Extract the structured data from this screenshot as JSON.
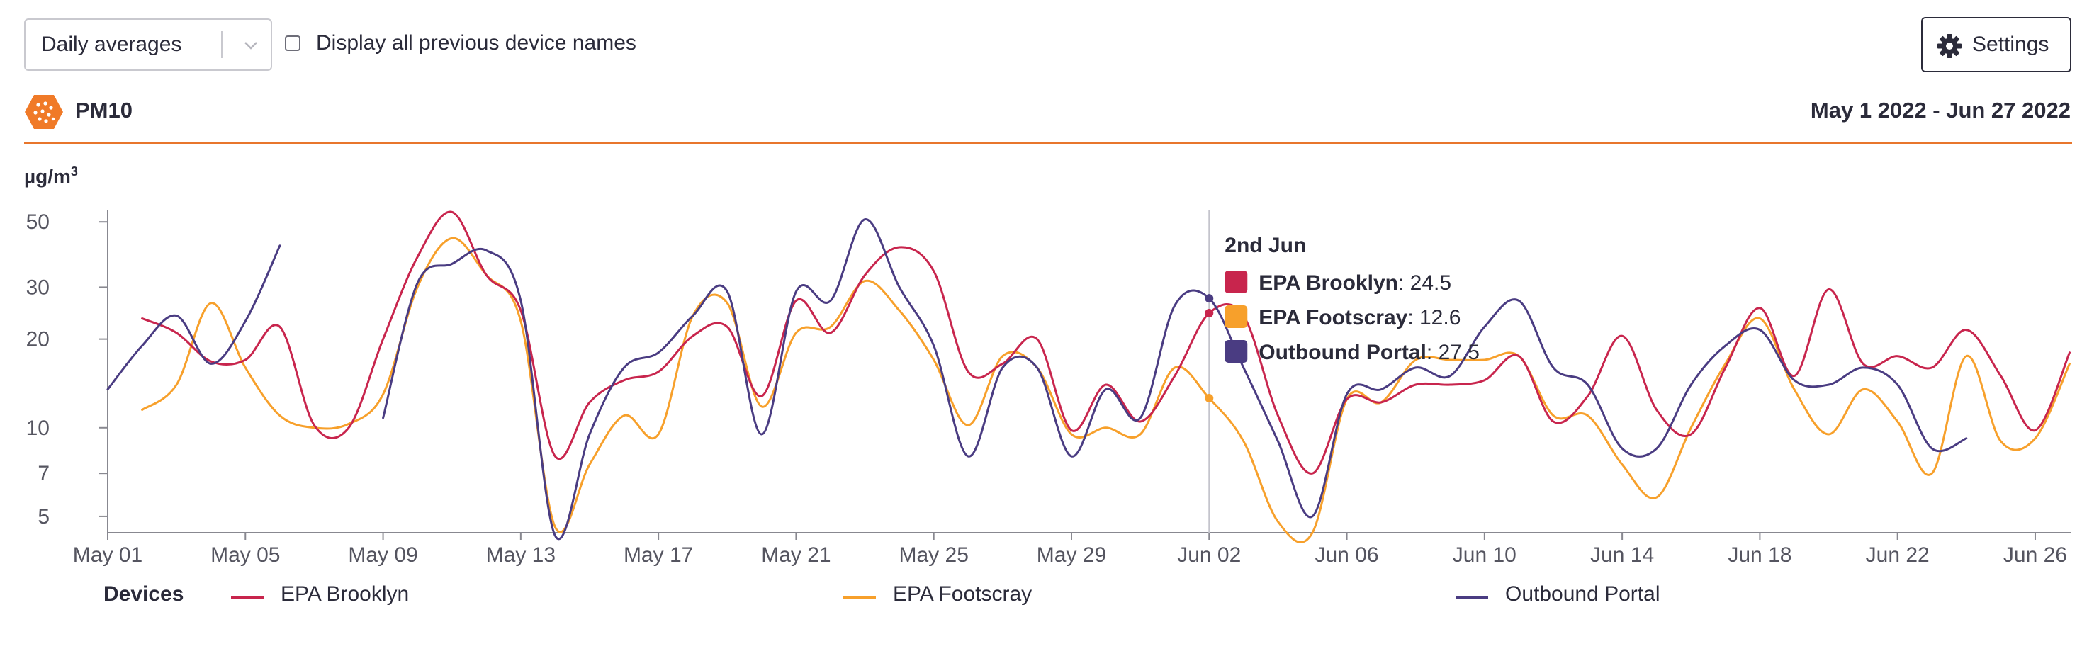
{
  "controls": {
    "aggregation_select": "Daily averages",
    "checkbox_label": "Display all previous device names",
    "settings_label": "Settings"
  },
  "header": {
    "pollutant": "PM10",
    "date_range": "May 1 2022 - Jun 27 2022"
  },
  "colors": {
    "accent": "#e8762c",
    "epa_brooklyn": "#c8254d",
    "epa_footscray": "#f7a02b",
    "outbound_portal": "#4a3c82",
    "axis": "#555560"
  },
  "tooltip": {
    "title": "2nd Jun",
    "rows": [
      {
        "name": "EPA Brooklyn",
        "value": ": 24.5"
      },
      {
        "name": "EPA Footscray",
        "value": ": 12.6"
      },
      {
        "name": "Outbound Portal",
        "value": ": 27.5"
      }
    ]
  },
  "legend": {
    "title": "Devices",
    "items": [
      "EPA Brooklyn",
      "EPA Footscray",
      "Outbound Portal"
    ]
  },
  "chart_data": {
    "type": "line",
    "ylabel": "µg/m",
    "ylabel_sup": "3",
    "y_scale": "log",
    "ylim": [
      4.4,
      55
    ],
    "y_ticks": [
      5,
      7,
      10,
      20,
      30,
      50
    ],
    "xlim": [
      "2022-05-01",
      "2022-06-27"
    ],
    "x_ticks": [
      {
        "date": "2022-05-01",
        "label": "May 01"
      },
      {
        "date": "2022-05-05",
        "label": "May 05"
      },
      {
        "date": "2022-05-09",
        "label": "May 09"
      },
      {
        "date": "2022-05-13",
        "label": "May 13"
      },
      {
        "date": "2022-05-17",
        "label": "May 17"
      },
      {
        "date": "2022-05-21",
        "label": "May 21"
      },
      {
        "date": "2022-05-25",
        "label": "May 25"
      },
      {
        "date": "2022-05-29",
        "label": "May 29"
      },
      {
        "date": "2022-06-02",
        "label": "Jun 02"
      },
      {
        "date": "2022-06-06",
        "label": "Jun 06"
      },
      {
        "date": "2022-06-10",
        "label": "Jun 10"
      },
      {
        "date": "2022-06-14",
        "label": "Jun 14"
      },
      {
        "date": "2022-06-18",
        "label": "Jun 18"
      },
      {
        "date": "2022-06-22",
        "label": "Jun 22"
      },
      {
        "date": "2022-06-26",
        "label": "Jun 26"
      }
    ],
    "hover_date": "2022-06-02",
    "series": [
      {
        "name": "EPA Brooklyn",
        "segments": [
          [
            [
              "2022-05-02",
              23.5
            ],
            [
              "2022-05-03",
              21
            ],
            [
              "2022-05-04",
              16.8
            ],
            [
              "2022-05-05",
              17
            ],
            [
              "2022-05-06",
              22
            ],
            [
              "2022-05-07",
              10.2
            ],
            [
              "2022-05-08",
              10
            ],
            [
              "2022-05-09",
              20
            ],
            [
              "2022-05-10",
              38
            ],
            [
              "2022-05-11",
              54
            ],
            [
              "2022-05-12",
              33
            ],
            [
              "2022-05-13",
              25
            ],
            [
              "2022-05-14",
              8
            ],
            [
              "2022-05-15",
              12.2
            ],
            [
              "2022-05-16",
              14.5
            ],
            [
              "2022-05-17",
              15.5
            ],
            [
              "2022-05-18",
              20.5
            ],
            [
              "2022-05-19",
              22
            ],
            [
              "2022-05-20",
              12.8
            ],
            [
              "2022-05-21",
              27
            ],
            [
              "2022-05-22",
              21
            ],
            [
              "2022-05-23",
              33
            ],
            [
              "2022-05-24",
              41
            ],
            [
              "2022-05-25",
              34
            ],
            [
              "2022-05-26",
              15.5
            ],
            [
              "2022-05-27",
              16.5
            ],
            [
              "2022-05-28",
              20
            ],
            [
              "2022-05-29",
              9.8
            ],
            [
              "2022-05-30",
              14
            ],
            [
              "2022-05-31",
              10.5
            ],
            [
              "2022-06-01",
              15
            ],
            [
              "2022-06-02",
              24.5
            ],
            [
              "2022-06-03",
              24
            ],
            [
              "2022-06-04",
              11
            ],
            [
              "2022-06-05",
              7
            ],
            [
              "2022-06-06",
              12.5
            ],
            [
              "2022-06-07",
              12.2
            ],
            [
              "2022-06-08",
              14
            ],
            [
              "2022-06-09",
              14
            ],
            [
              "2022-06-10",
              14.5
            ],
            [
              "2022-06-11",
              17.5
            ],
            [
              "2022-06-12",
              10.5
            ],
            [
              "2022-06-13",
              12.8
            ],
            [
              "2022-06-14",
              20.5
            ],
            [
              "2022-06-15",
              11.5
            ],
            [
              "2022-06-16",
              9.5
            ],
            [
              "2022-06-17",
              16
            ],
            [
              "2022-06-18",
              25.5
            ],
            [
              "2022-06-19",
              15
            ],
            [
              "2022-06-20",
              29.5
            ],
            [
              "2022-06-21",
              16.5
            ],
            [
              "2022-06-22",
              17.5
            ],
            [
              "2022-06-23",
              16
            ],
            [
              "2022-06-24",
              21.5
            ],
            [
              "2022-06-25",
              15
            ],
            [
              "2022-06-26",
              9.8
            ],
            [
              "2022-06-27",
              18
            ]
          ]
        ]
      },
      {
        "name": "EPA Footscray",
        "segments": [
          [
            [
              "2022-05-02",
              11.5
            ],
            [
              "2022-05-03",
              14
            ],
            [
              "2022-05-04",
              26.5
            ],
            [
              "2022-05-05",
              16
            ],
            [
              "2022-05-06",
              11
            ],
            [
              "2022-05-07",
              10
            ],
            [
              "2022-05-08",
              10.3
            ],
            [
              "2022-05-09",
              13
            ],
            [
              "2022-05-10",
              30
            ],
            [
              "2022-05-11",
              44
            ],
            [
              "2022-05-12",
              33
            ],
            [
              "2022-05-13",
              23
            ],
            [
              "2022-05-14",
              4.6
            ],
            [
              "2022-05-15",
              7.5
            ],
            [
              "2022-05-16",
              11
            ],
            [
              "2022-05-17",
              9.5
            ],
            [
              "2022-05-18",
              24
            ],
            [
              "2022-05-19",
              26.5
            ],
            [
              "2022-05-20",
              11.8
            ],
            [
              "2022-05-21",
              21
            ],
            [
              "2022-05-22",
              22
            ],
            [
              "2022-05-23",
              31.5
            ],
            [
              "2022-05-24",
              25
            ],
            [
              "2022-05-25",
              17
            ],
            [
              "2022-05-26",
              10.2
            ],
            [
              "2022-05-27",
              17.5
            ],
            [
              "2022-05-28",
              16
            ],
            [
              "2022-05-29",
              9.5
            ],
            [
              "2022-05-30",
              10
            ],
            [
              "2022-05-31",
              9.5
            ],
            [
              "2022-06-01",
              16
            ],
            [
              "2022-06-02",
              12.6
            ],
            [
              "2022-06-03",
              9
            ],
            [
              "2022-06-04",
              4.8
            ],
            [
              "2022-06-05",
              4.4
            ],
            [
              "2022-06-06",
              12.5
            ],
            [
              "2022-06-07",
              12.2
            ],
            [
              "2022-06-08",
              17
            ],
            [
              "2022-06-09",
              17
            ],
            [
              "2022-06-10",
              17
            ],
            [
              "2022-06-11",
              17.5
            ],
            [
              "2022-06-12",
              11
            ],
            [
              "2022-06-13",
              11
            ],
            [
              "2022-06-14",
              7.5
            ],
            [
              "2022-06-15",
              5.8
            ],
            [
              "2022-06-16",
              10
            ],
            [
              "2022-06-17",
              16.5
            ],
            [
              "2022-06-18",
              23.5
            ],
            [
              "2022-06-19",
              13.5
            ],
            [
              "2022-06-20",
              9.5
            ],
            [
              "2022-06-21",
              13.5
            ],
            [
              "2022-06-22",
              10.5
            ],
            [
              "2022-06-23",
              7
            ],
            [
              "2022-06-24",
              17.5
            ],
            [
              "2022-06-25",
              9
            ],
            [
              "2022-06-26",
              9.2
            ],
            [
              "2022-06-27",
              16.5
            ]
          ]
        ]
      },
      {
        "name": "Outbound Portal",
        "segments": [
          [
            [
              "2022-05-01",
              13.5
            ],
            [
              "2022-05-02",
              19
            ],
            [
              "2022-05-03",
              24
            ],
            [
              "2022-05-04",
              16.5
            ],
            [
              "2022-05-05",
              23
            ],
            [
              "2022-05-06",
              41.5
            ]
          ],
          [
            [
              "2022-05-09",
              10.8
            ],
            [
              "2022-05-10",
              31
            ],
            [
              "2022-05-11",
              36
            ],
            [
              "2022-05-12",
              40
            ],
            [
              "2022-05-13",
              27
            ],
            [
              "2022-05-14",
              4.3
            ],
            [
              "2022-05-15",
              9.5
            ],
            [
              "2022-05-16",
              16
            ],
            [
              "2022-05-17",
              18
            ],
            [
              "2022-05-18",
              24
            ],
            [
              "2022-05-19",
              29
            ],
            [
              "2022-05-20",
              9.5
            ],
            [
              "2022-05-21",
              29
            ],
            [
              "2022-05-22",
              27
            ],
            [
              "2022-05-23",
              51
            ],
            [
              "2022-05-24",
              30
            ],
            [
              "2022-05-25",
              19
            ],
            [
              "2022-05-26",
              8
            ],
            [
              "2022-05-27",
              16
            ],
            [
              "2022-05-28",
              16
            ],
            [
              "2022-05-29",
              8
            ],
            [
              "2022-05-30",
              13.5
            ],
            [
              "2022-05-31",
              10.8
            ],
            [
              "2022-06-01",
              26
            ],
            [
              "2022-06-02",
              27.5
            ],
            [
              "2022-06-03",
              16
            ],
            [
              "2022-06-04",
              9
            ],
            [
              "2022-06-05",
              5
            ],
            [
              "2022-06-06",
              13
            ],
            [
              "2022-06-07",
              13.5
            ],
            [
              "2022-06-08",
              16
            ],
            [
              "2022-06-09",
              15
            ],
            [
              "2022-06-10",
              22
            ],
            [
              "2022-06-11",
              27
            ],
            [
              "2022-06-12",
              16
            ],
            [
              "2022-06-13",
              14
            ],
            [
              "2022-06-14",
              8.5
            ],
            [
              "2022-06-15",
              8.5
            ],
            [
              "2022-06-16",
              14
            ],
            [
              "2022-06-17",
              19
            ],
            [
              "2022-06-18",
              21.5
            ],
            [
              "2022-06-19",
              14.5
            ],
            [
              "2022-06-20",
              14
            ],
            [
              "2022-06-21",
              16
            ],
            [
              "2022-06-22",
              14
            ],
            [
              "2022-06-23",
              8.5
            ],
            [
              "2022-06-24",
              9.2
            ]
          ]
        ]
      }
    ]
  }
}
